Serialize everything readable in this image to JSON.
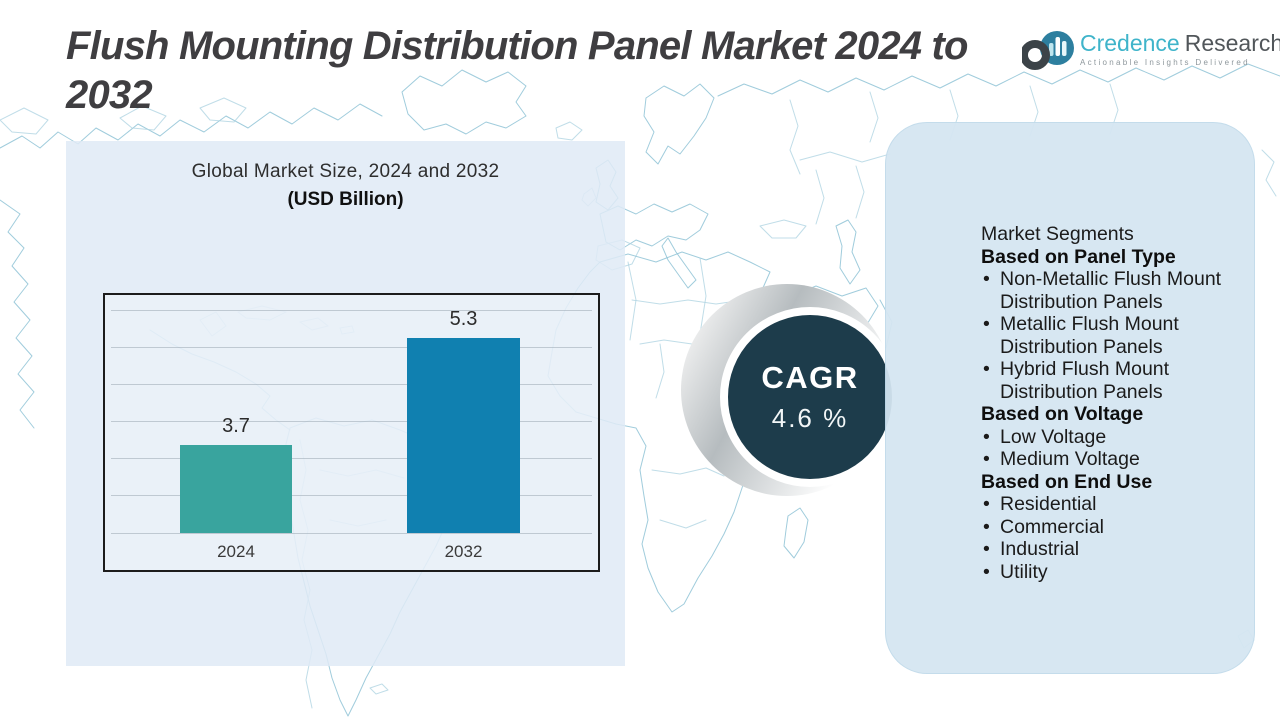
{
  "title": {
    "line1": "Flush Mounting Distribution Panel Market 2024 to",
    "line2": "2032",
    "full": "Flush Mounting Distribution Panel Market 2024 to 2032"
  },
  "logo": {
    "name_primary": "Credence",
    "name_secondary": "Research",
    "tagline": "Actionable Insights Delivered",
    "icon": "donut-and-bar-chart-circle-icon",
    "brand_teal": "#3fb4ca",
    "brand_gray": "#51565a"
  },
  "chart_card": {
    "title_line1": "Global Market Size, 2024 and 2032",
    "title_line2": "(USD Billion)"
  },
  "chart_data": {
    "type": "bar",
    "title": "Global Market Size, 2024 and 2032",
    "ylabel": "USD Billion",
    "categories": [
      "2024",
      "2032"
    ],
    "values": [
      3.7,
      5.3
    ],
    "value_labels": [
      "3.7",
      "5.3"
    ],
    "bar_colors": [
      "#39a49e",
      "#1080b0"
    ],
    "grid": true,
    "gridline_count": 7,
    "legend": "none"
  },
  "cagr": {
    "label": "CAGR",
    "value": "4.6 %",
    "circle_color": "#1d3c4b"
  },
  "segments": {
    "heading": "Market Segments",
    "bullet_char": "•",
    "groups": [
      {
        "title": "Based on Panel Type",
        "items": [
          "Non-Metallic Flush Mount Distribution Panels",
          "Metallic Flush Mount Distribution Panels",
          "Hybrid Flush Mount Distribution Panels"
        ]
      },
      {
        "title": "Based on Voltage",
        "items": [
          "Low Voltage",
          "Medium Voltage"
        ]
      },
      {
        "title": "Based on End Use",
        "items": [
          "Residential",
          "Commercial",
          "Industrial",
          "Utility"
        ]
      }
    ]
  },
  "colors": {
    "left_panel": "#e4edf6",
    "right_panel": "#d7e8f1",
    "map_stroke": "#8fc3d6",
    "title_text": "#3f3e41"
  }
}
